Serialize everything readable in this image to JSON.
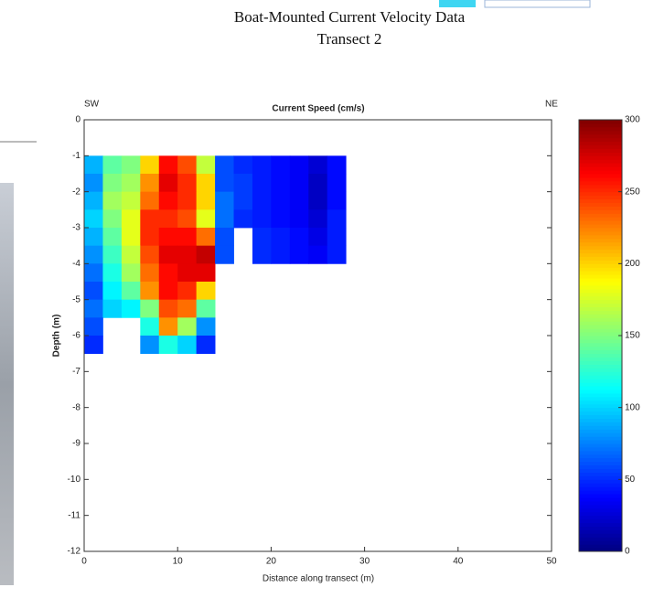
{
  "header": {
    "title": "Boat-Mounted Current Velocity Data",
    "subtitle": "Transect 2"
  },
  "chart_data": {
    "type": "heatmap",
    "title": "Current Speed (cm/s)",
    "left_label": "SW",
    "right_label": "NE",
    "x_label": "Distance along transect (m)",
    "y_label": "Depth (m)",
    "colormap": "jet",
    "xbins": [
      0,
      2,
      4,
      6,
      8,
      10,
      12,
      14,
      16,
      18,
      20,
      22,
      24,
      26,
      28
    ],
    "ybins": [
      -1,
      -1.5,
      -2,
      -2.5,
      -3,
      -3.5,
      -4,
      -4.5,
      -5,
      -5.5,
      -6,
      -6.5
    ],
    "values": [
      [
        90,
        140,
        150,
        200,
        260,
        240,
        170,
        60,
        50,
        45,
        40,
        35,
        25,
        40
      ],
      [
        80,
        150,
        160,
        220,
        270,
        250,
        200,
        60,
        55,
        45,
        40,
        35,
        20,
        40
      ],
      [
        90,
        160,
        170,
        230,
        260,
        250,
        200,
        70,
        55,
        45,
        40,
        35,
        20,
        40
      ],
      [
        100,
        150,
        180,
        250,
        250,
        240,
        180,
        70,
        50,
        45,
        40,
        35,
        25,
        45
      ],
      [
        90,
        140,
        180,
        250,
        260,
        260,
        230,
        60,
        null,
        50,
        45,
        40,
        30,
        45
      ],
      [
        80,
        130,
        170,
        240,
        270,
        270,
        280,
        60,
        null,
        50,
        45,
        40,
        35,
        45
      ],
      [
        70,
        120,
        160,
        230,
        260,
        270,
        270,
        null,
        null,
        null,
        null,
        null,
        null,
        null
      ],
      [
        60,
        110,
        140,
        220,
        260,
        250,
        200,
        null,
        null,
        null,
        null,
        null,
        null,
        null
      ],
      [
        70,
        100,
        110,
        150,
        240,
        230,
        140,
        null,
        null,
        null,
        null,
        null,
        null,
        null
      ],
      [
        60,
        null,
        null,
        120,
        220,
        160,
        80,
        null,
        null,
        null,
        null,
        null,
        null,
        null
      ],
      [
        50,
        null,
        null,
        80,
        120,
        100,
        50,
        null,
        null,
        null,
        null,
        null,
        null,
        null
      ]
    ],
    "xlim": [
      0,
      50
    ],
    "xticks": [
      0,
      10,
      20,
      30,
      40,
      50
    ],
    "ylim": [
      -12,
      0
    ],
    "yticks": [
      0,
      -1,
      -2,
      -3,
      -4,
      -5,
      -6,
      -7,
      -8,
      -9,
      -10,
      -11,
      -12
    ],
    "clim": [
      0,
      300
    ],
    "cticks": [
      0,
      50,
      100,
      150,
      200,
      250,
      300
    ]
  }
}
